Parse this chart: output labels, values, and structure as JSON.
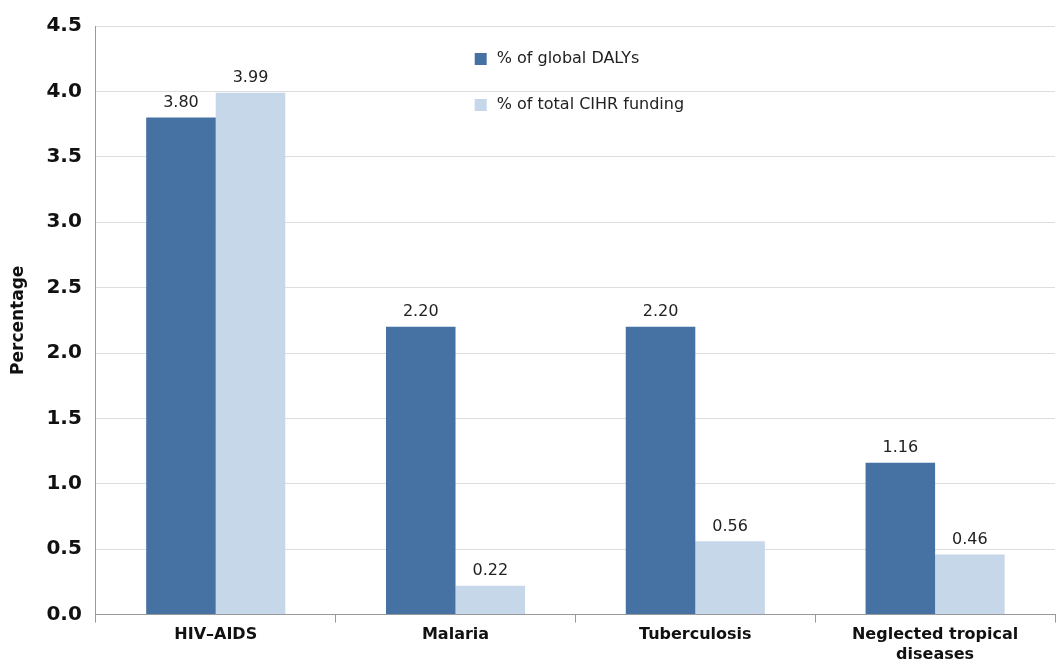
{
  "chart_data": {
    "type": "bar",
    "ylabel": "Percentage",
    "categories": [
      "HIV–AIDS",
      "Malaria",
      "Tuberculosis",
      "Neglected tropical diseases"
    ],
    "series": [
      {
        "name": "% of global DALYs",
        "color": "#4672a3",
        "values": [
          3.8,
          2.2,
          2.2,
          1.16
        ],
        "value_labels": [
          "3.80",
          "2.20",
          "2.20",
          "1.16"
        ]
      },
      {
        "name": "% of total CIHR funding",
        "color": "#c6d7ea",
        "values": [
          3.99,
          0.22,
          0.56,
          0.46
        ],
        "value_labels": [
          "3.99",
          "0.22",
          "0.56",
          "0.46"
        ]
      }
    ],
    "ylim": [
      0,
      4.5
    ],
    "yticks": [
      {
        "value": 0,
        "label": "0.0"
      },
      {
        "value": 0.5,
        "label": "0.5"
      },
      {
        "value": 1,
        "label": "1.0"
      },
      {
        "value": 1.5,
        "label": "1.5"
      },
      {
        "value": 2,
        "label": "2.0"
      },
      {
        "value": 2.5,
        "label": "2.5"
      },
      {
        "value": 3,
        "label": "3.0"
      },
      {
        "value": 3.5,
        "label": "3.5"
      },
      {
        "value": 4,
        "label": "4.0"
      },
      {
        "value": 4.5,
        "label": "4.5"
      }
    ],
    "grid": "y",
    "legend": "top"
  }
}
